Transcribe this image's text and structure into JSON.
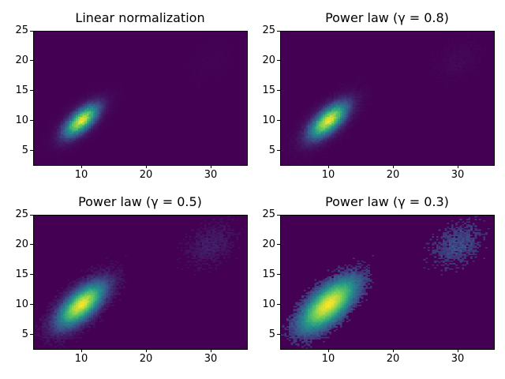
{
  "chart_data": [
    {
      "type": "heatmap",
      "title": "Linear normalization",
      "gamma": 1,
      "colormap": "viridis",
      "bins": 100,
      "xlim": [
        2.56,
        35.6
      ],
      "ylim": [
        2.63,
        25
      ],
      "xticks": [
        "10",
        "20",
        "30"
      ],
      "yticks": [
        "5",
        "10",
        "15",
        "20",
        "25"
      ],
      "clusters": [
        {
          "center": [
            10,
            10
          ]
        },
        {
          "center": [
            30,
            20
          ]
        }
      ]
    },
    {
      "type": "heatmap",
      "title": "Power law (γ = 0.8)",
      "gamma": 0.8,
      "colormap": "viridis",
      "bins": 100,
      "xlim": [
        2.56,
        35.6
      ],
      "ylim": [
        2.63,
        25
      ],
      "xticks": [
        "10",
        "20",
        "30"
      ],
      "yticks": [
        "5",
        "10",
        "15",
        "20",
        "25"
      ],
      "clusters": [
        {
          "center": [
            10,
            10
          ]
        },
        {
          "center": [
            30,
            20
          ]
        }
      ]
    },
    {
      "type": "heatmap",
      "title": "Power law (γ = 0.5)",
      "gamma": 0.5,
      "colormap": "viridis",
      "bins": 100,
      "xlim": [
        2.56,
        35.6
      ],
      "ylim": [
        2.63,
        25
      ],
      "xticks": [
        "10",
        "20",
        "30"
      ],
      "yticks": [
        "5",
        "10",
        "15",
        "20",
        "25"
      ],
      "clusters": [
        {
          "center": [
            10,
            10
          ]
        },
        {
          "center": [
            30,
            20
          ]
        }
      ]
    },
    {
      "type": "heatmap",
      "title": "Power law (γ = 0.3)",
      "gamma": 0.3,
      "colormap": "viridis",
      "bins": 100,
      "xlim": [
        2.56,
        35.6
      ],
      "ylim": [
        2.63,
        25
      ],
      "xticks": [
        "10",
        "20",
        "30"
      ],
      "yticks": [
        "5",
        "10",
        "15",
        "20",
        "25"
      ],
      "clusters": [
        {
          "center": [
            10,
            10
          ]
        },
        {
          "center": [
            30,
            20
          ]
        }
      ]
    }
  ]
}
